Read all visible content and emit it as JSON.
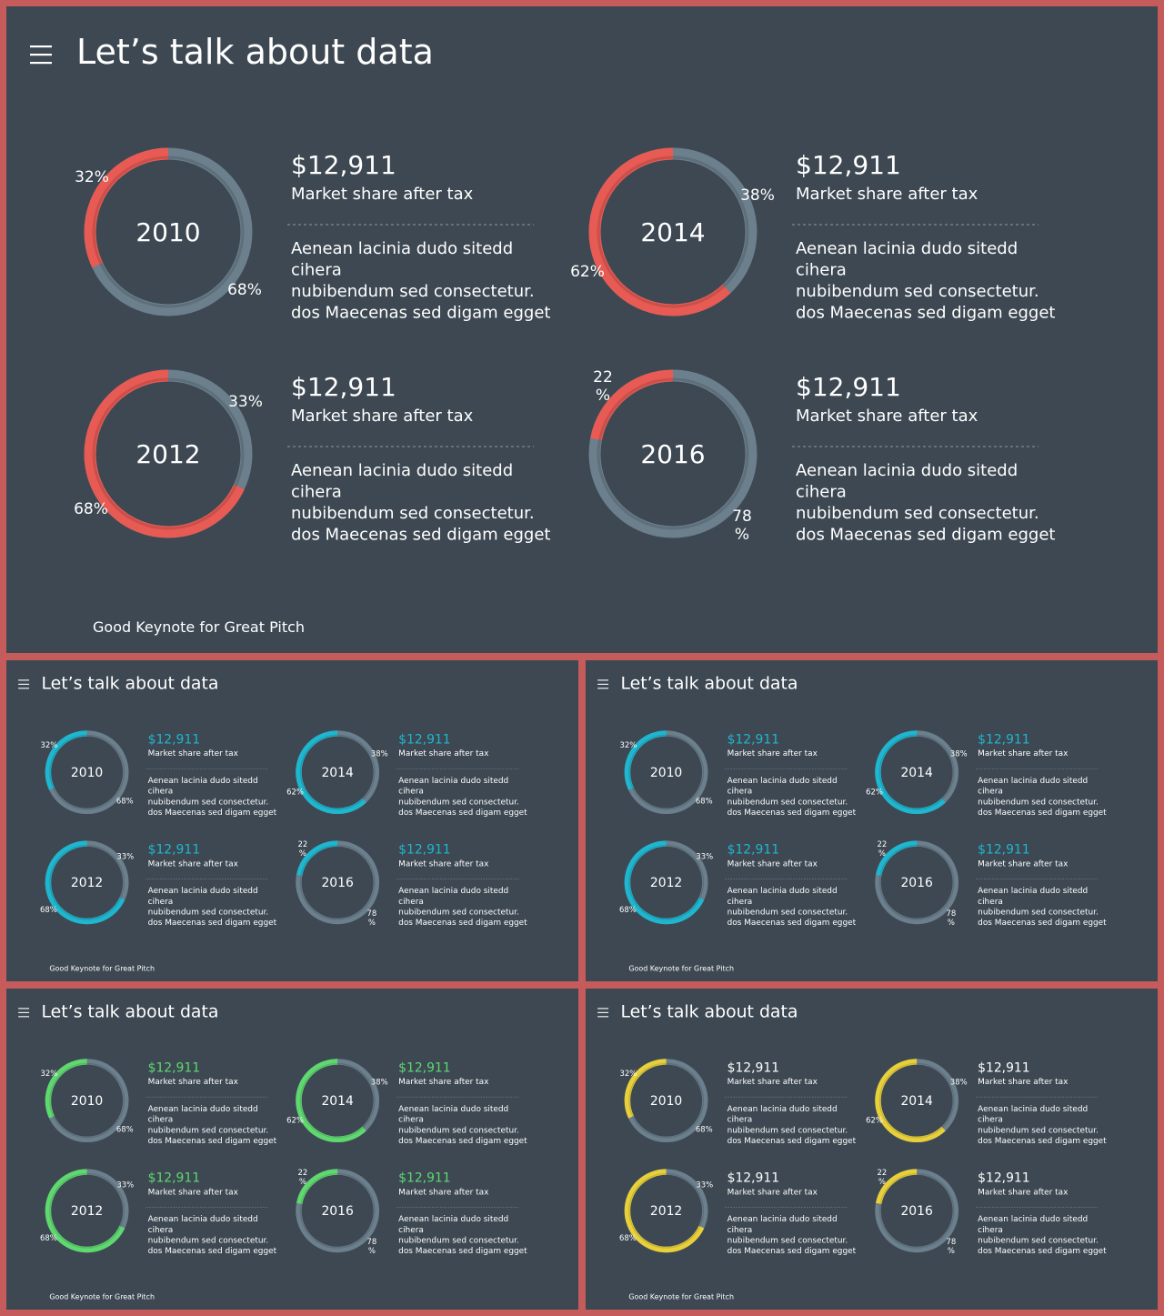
{
  "slides": [
    {
      "title": "Let’s talk about data",
      "footer": "Good Keynote for Great Pitch",
      "accent": "#e85a54",
      "price_color": "#ffffff",
      "blocks": [
        {
          "year": "2010",
          "accent_percent": 32,
          "price": "$12,911",
          "subtitle": "Market share after tax",
          "body_lines": [
            "Aenean lacinia  dudo  sitedd",
            "cihera",
            "nubibendum sed consectetur.",
            "dos Maecenas sed digam egget"
          ],
          "labels": [
            {
              "line1": "32%",
              "line2": ""
            },
            {
              "line1": "68%",
              "line2": ""
            }
          ]
        },
        {
          "year": "2014",
          "accent_percent": 62,
          "price": "$12,911",
          "subtitle": "Market share after tax",
          "body_lines": [
            "Aenean lacinia  dudo  sitedd",
            "cihera",
            "nubibendum sed consectetur.",
            "dos Maecenas sed digam egget"
          ],
          "labels": [
            {
              "line1": "38%",
              "line2": ""
            },
            {
              "line1": "62%",
              "line2": ""
            }
          ]
        },
        {
          "year": "2012",
          "accent_percent": 68,
          "price": "$12,911",
          "subtitle": "Market share after tax",
          "body_lines": [
            "Aenean lacinia  dudo  sitedd",
            "cihera",
            "nubibendum sed consectetur.",
            "dos Maecenas sed digam egget"
          ],
          "labels": [
            {
              "line1": "33%",
              "line2": ""
            },
            {
              "line1": "68%",
              "line2": ""
            }
          ]
        },
        {
          "year": "2016",
          "accent_percent": 22,
          "price": "$12,911",
          "subtitle": "Market share after tax",
          "body_lines": [
            "Aenean lacinia  dudo  sitedd",
            "cihera",
            "nubibendum sed consectetur.",
            "dos Maecenas sed digam egget"
          ],
          "labels": [
            {
              "line1": "22",
              "line2": "%"
            },
            {
              "line1": "78",
              "line2": "%"
            }
          ]
        }
      ]
    },
    {
      "title": "Let’s talk about data",
      "footer": "Good Keynote for Great Pitch",
      "accent": "#1fb6cf",
      "price_color": "#1fb6cf",
      "blocks": [
        {
          "year": "2010",
          "accent_percent": 32,
          "price": "$12,911",
          "subtitle": "Market share after tax",
          "body_lines": [
            "Aenean lacinia  dudo  sitedd",
            "cihera",
            "nubibendum sed consectetur.",
            "dos Maecenas sed digam egget"
          ],
          "labels": [
            {
              "line1": "32%",
              "line2": ""
            },
            {
              "line1": "68%",
              "line2": ""
            }
          ]
        },
        {
          "year": "2014",
          "accent_percent": 62,
          "price": "$12,911",
          "subtitle": "Market share after tax",
          "body_lines": [
            "Aenean lacinia  dudo  sitedd",
            "cihera",
            "nubibendum sed consectetur.",
            "dos Maecenas sed digam egget"
          ],
          "labels": [
            {
              "line1": "38%",
              "line2": ""
            },
            {
              "line1": "62%",
              "line2": ""
            }
          ]
        },
        {
          "year": "2012",
          "accent_percent": 68,
          "price": "$12,911",
          "subtitle": "Market share after tax",
          "body_lines": [
            "Aenean lacinia  dudo  sitedd",
            "cihera",
            "nubibendum sed consectetur.",
            "dos Maecenas sed digam egget"
          ],
          "labels": [
            {
              "line1": "33%",
              "line2": ""
            },
            {
              "line1": "68%",
              "line2": ""
            }
          ]
        },
        {
          "year": "2016",
          "accent_percent": 22,
          "price": "$12,911",
          "subtitle": "Market share after tax",
          "body_lines": [
            "Aenean lacinia  dudo  sitedd",
            "cihera",
            "nubibendum sed consectetur.",
            "dos Maecenas sed digam egget"
          ],
          "labels": [
            {
              "line1": "22",
              "line2": "%"
            },
            {
              "line1": "78",
              "line2": "%"
            }
          ]
        }
      ]
    },
    {
      "title": "Let’s talk about data",
      "footer": "Good Keynote for Great Pitch",
      "accent": "#1fb6cf",
      "price_color": "#1fb6cf",
      "blocks": [
        {
          "year": "2010",
          "accent_percent": 32,
          "price": "$12,911",
          "subtitle": "Market share after tax",
          "body_lines": [
            "Aenean lacinia  dudo  sitedd",
            "cihera",
            "nubibendum sed consectetur.",
            "dos Maecenas sed digam egget"
          ],
          "labels": [
            {
              "line1": "32%",
              "line2": ""
            },
            {
              "line1": "68%",
              "line2": ""
            }
          ]
        },
        {
          "year": "2014",
          "accent_percent": 62,
          "price": "$12,911",
          "subtitle": "Market share after tax",
          "body_lines": [
            "Aenean lacinia  dudo  sitedd",
            "cihera",
            "nubibendum sed consectetur.",
            "dos Maecenas sed digam egget"
          ],
          "labels": [
            {
              "line1": "38%",
              "line2": ""
            },
            {
              "line1": "62%",
              "line2": ""
            }
          ]
        },
        {
          "year": "2012",
          "accent_percent": 68,
          "price": "$12,911",
          "subtitle": "Market share after tax",
          "body_lines": [
            "Aenean lacinia  dudo  sitedd",
            "cihera",
            "nubibendum sed consectetur.",
            "dos Maecenas sed digam egget"
          ],
          "labels": [
            {
              "line1": "33%",
              "line2": ""
            },
            {
              "line1": "68%",
              "line2": ""
            }
          ]
        },
        {
          "year": "2016",
          "accent_percent": 22,
          "price": "$12,911",
          "subtitle": "Market share after tax",
          "body_lines": [
            "Aenean lacinia  dudo  sitedd",
            "cihera",
            "nubibendum sed consectetur.",
            "dos Maecenas sed digam egget"
          ],
          "labels": [
            {
              "line1": "22",
              "line2": "%"
            },
            {
              "line1": "78",
              "line2": "%"
            }
          ]
        }
      ]
    },
    {
      "title": "Let’s talk about data",
      "footer": "Good Keynote for Great Pitch",
      "accent": "#5fd870",
      "price_color": "#5fd870",
      "blocks": [
        {
          "year": "2010",
          "accent_percent": 32,
          "price": "$12,911",
          "subtitle": "Market share after tax",
          "body_lines": [
            "Aenean lacinia  dudo  sitedd",
            "cihera",
            "nubibendum sed consectetur.",
            "dos Maecenas sed digam egget"
          ],
          "labels": [
            {
              "line1": "32%",
              "line2": ""
            },
            {
              "line1": "68%",
              "line2": ""
            }
          ]
        },
        {
          "year": "2014",
          "accent_percent": 62,
          "price": "$12,911",
          "subtitle": "Market share after tax",
          "body_lines": [
            "Aenean lacinia  dudo  sitedd",
            "cihera",
            "nubibendum sed consectetur.",
            "dos Maecenas sed digam egget"
          ],
          "labels": [
            {
              "line1": "38%",
              "line2": ""
            },
            {
              "line1": "62%",
              "line2": ""
            }
          ]
        },
        {
          "year": "2012",
          "accent_percent": 68,
          "price": "$12,911",
          "subtitle": "Market share after tax",
          "body_lines": [
            "Aenean lacinia  dudo  sitedd",
            "cihera",
            "nubibendum sed consectetur.",
            "dos Maecenas sed digam egget"
          ],
          "labels": [
            {
              "line1": "33%",
              "line2": ""
            },
            {
              "line1": "68%",
              "line2": ""
            }
          ]
        },
        {
          "year": "2016",
          "accent_percent": 22,
          "price": "$12,911",
          "subtitle": "Market share after tax",
          "body_lines": [
            "Aenean lacinia  dudo  sitedd",
            "cihera",
            "nubibendum sed consectetur.",
            "dos Maecenas sed digam egget"
          ],
          "labels": [
            {
              "line1": "22",
              "line2": "%"
            },
            {
              "line1": "78",
              "line2": "%"
            }
          ]
        }
      ]
    },
    {
      "title": "Let’s talk about data",
      "footer": "Good Keynote for Great Pitch",
      "accent": "#e8d03a",
      "price_color": "#ffffff",
      "blocks": [
        {
          "year": "2010",
          "accent_percent": 32,
          "price": "$12,911",
          "subtitle": "Market share after tax",
          "body_lines": [
            "Aenean lacinia  dudo  sitedd",
            "cihera",
            "nubibendum sed consectetur.",
            "dos Maecenas sed digam egget"
          ],
          "labels": [
            {
              "line1": "32%",
              "line2": ""
            },
            {
              "line1": "68%",
              "line2": ""
            }
          ]
        },
        {
          "year": "2014",
          "accent_percent": 62,
          "price": "$12,911",
          "subtitle": "Market share after tax",
          "body_lines": [
            "Aenean lacinia  dudo  sitedd",
            "cihera",
            "nubibendum sed consectetur.",
            "dos Maecenas sed digam egget"
          ],
          "labels": [
            {
              "line1": "38%",
              "line2": ""
            },
            {
              "line1": "62%",
              "line2": ""
            }
          ]
        },
        {
          "year": "2012",
          "accent_percent": 68,
          "price": "$12,911",
          "subtitle": "Market share after tax",
          "body_lines": [
            "Aenean lacinia  dudo  sitedd",
            "cihera",
            "nubibendum sed consectetur.",
            "dos Maecenas sed digam egget"
          ],
          "labels": [
            {
              "line1": "33%",
              "line2": ""
            },
            {
              "line1": "68%",
              "line2": ""
            }
          ]
        },
        {
          "year": "2016",
          "accent_percent": 22,
          "price": "$12,911",
          "subtitle": "Market share after tax",
          "body_lines": [
            "Aenean lacinia  dudo  sitedd",
            "cihera",
            "nubibendum sed consectetur.",
            "dos Maecenas sed digam egget"
          ],
          "labels": [
            {
              "line1": "22",
              "line2": "%"
            },
            {
              "line1": "78",
              "line2": "%"
            }
          ]
        }
      ]
    }
  ],
  "colors": {
    "slide_background": "#3d4852",
    "frame": "#c65b5b",
    "ring_track": "#6b7f8c",
    "divider": "#7c8792",
    "text": "#ffffff"
  }
}
